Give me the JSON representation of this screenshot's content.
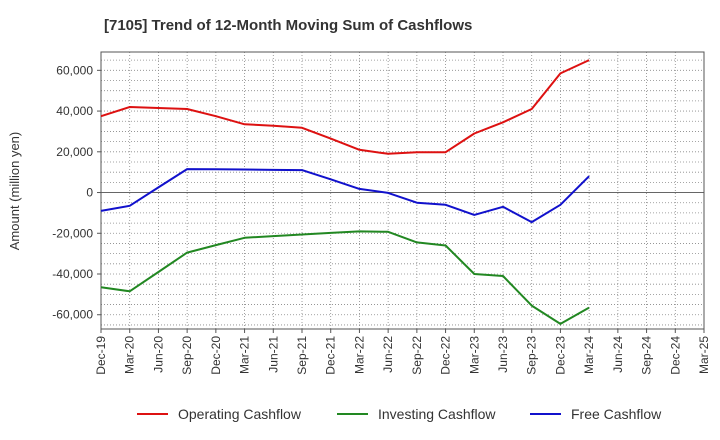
{
  "chart_data": {
    "type": "line",
    "title": "[7105]  Trend of 12-Month Moving Sum of Cashflows",
    "xlabel": "",
    "ylabel": "Amount (million yen)",
    "categories": [
      "Dec-19",
      "Mar-20",
      "Jun-20",
      "Sep-20",
      "Dec-20",
      "Mar-21",
      "Jun-21",
      "Sep-21",
      "Dec-21",
      "Mar-22",
      "Jun-22",
      "Sep-22",
      "Dec-22",
      "Mar-23",
      "Jun-23",
      "Sep-23",
      "Dec-23",
      "Mar-24",
      "Jun-24",
      "Sep-24",
      "Dec-24",
      "Mar-25"
    ],
    "ylim": [
      -67000,
      69000
    ],
    "yticks": [
      -60000,
      -40000,
      -20000,
      0,
      20000,
      40000,
      60000
    ],
    "ytick_labels": [
      "-60,000",
      "-40,000",
      "-20,000",
      "0",
      "20,000",
      "40,000",
      "60,000"
    ],
    "grid": true,
    "legend_position": "bottom",
    "series": [
      {
        "name": "Operating Cashflow",
        "color": "#dd1111",
        "values": [
          37500,
          42000,
          41500,
          41000,
          37500,
          33500,
          32800,
          31800,
          26500,
          21000,
          19000,
          19800,
          19800,
          29000,
          34500,
          41000,
          58500,
          65000,
          null,
          null,
          null,
          null
        ]
      },
      {
        "name": "Investing Cashflow",
        "color": "#228822",
        "values": [
          -46500,
          -48500,
          -39000,
          -29500,
          -25800,
          -22200,
          -21400,
          -20600,
          -19800,
          -19100,
          -19300,
          -24500,
          -26000,
          -40000,
          -41000,
          -55500,
          -64500,
          -56500,
          null,
          null,
          null,
          null
        ]
      },
      {
        "name": "Free Cashflow",
        "color": "#1111cc",
        "values": [
          -9000,
          -6500,
          2500,
          11500,
          11400,
          11300,
          11100,
          11000,
          6500,
          1800,
          -200,
          -5000,
          -6000,
          -11000,
          -7000,
          -14500,
          -6000,
          8000,
          null,
          null,
          null,
          null
        ]
      }
    ]
  }
}
